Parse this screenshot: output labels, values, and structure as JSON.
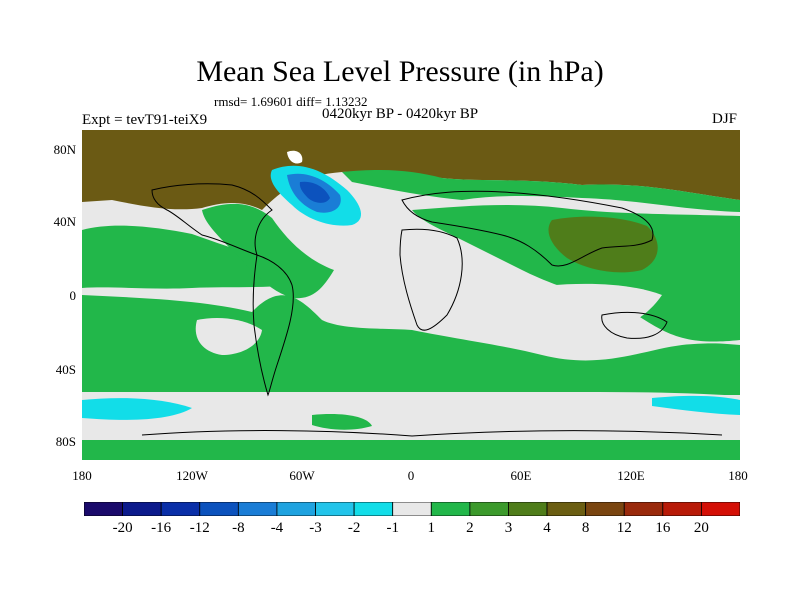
{
  "header": {
    "title": "Mean Sea Level Pressure (in hPa)",
    "stats": "rmsd= 1.69601 diff= 1.13232",
    "subtitle": "0420kyr BP - 0420kyr BP",
    "experiment": "Expt = tevT91-teiX9",
    "season": "DJF"
  },
  "map": {
    "lat_ticks": [
      "80N",
      "40N",
      "0",
      "40S",
      "80S"
    ],
    "lon_ticks": [
      "180",
      "120W",
      "60W",
      "0",
      "60E",
      "120E",
      "180"
    ],
    "lat_range": [
      -90,
      90
    ],
    "lon_range": [
      -180,
      180
    ]
  },
  "colorbar": {
    "labels": [
      "-20",
      "-16",
      "-12",
      "-8",
      "-4",
      "-3",
      "-2",
      "-1",
      "1",
      "2",
      "3",
      "4",
      "8",
      "12",
      "16",
      "20"
    ],
    "colors": [
      "#1a0a6b",
      "#0c1a8c",
      "#0a2fa8",
      "#0c52bd",
      "#1a7dd6",
      "#1fa3e0",
      "#22c4ea",
      "#12dde8",
      "#e8e8e8",
      "#22b74a",
      "#3c9a2c",
      "#4f7d1a",
      "#6b5e12",
      "#7a4510",
      "#9a2a0c",
      "#b81a08",
      "#d40f06"
    ]
  },
  "colors": {
    "neutral": "#e8e8e8",
    "green": "#22b74a",
    "darkgreen": "#4f7d1a",
    "brown": "#6b5a14",
    "cyan": "#12dde8",
    "blue": "#1a7dd6",
    "darkblue": "#0c52bd",
    "coast": "#000000"
  }
}
